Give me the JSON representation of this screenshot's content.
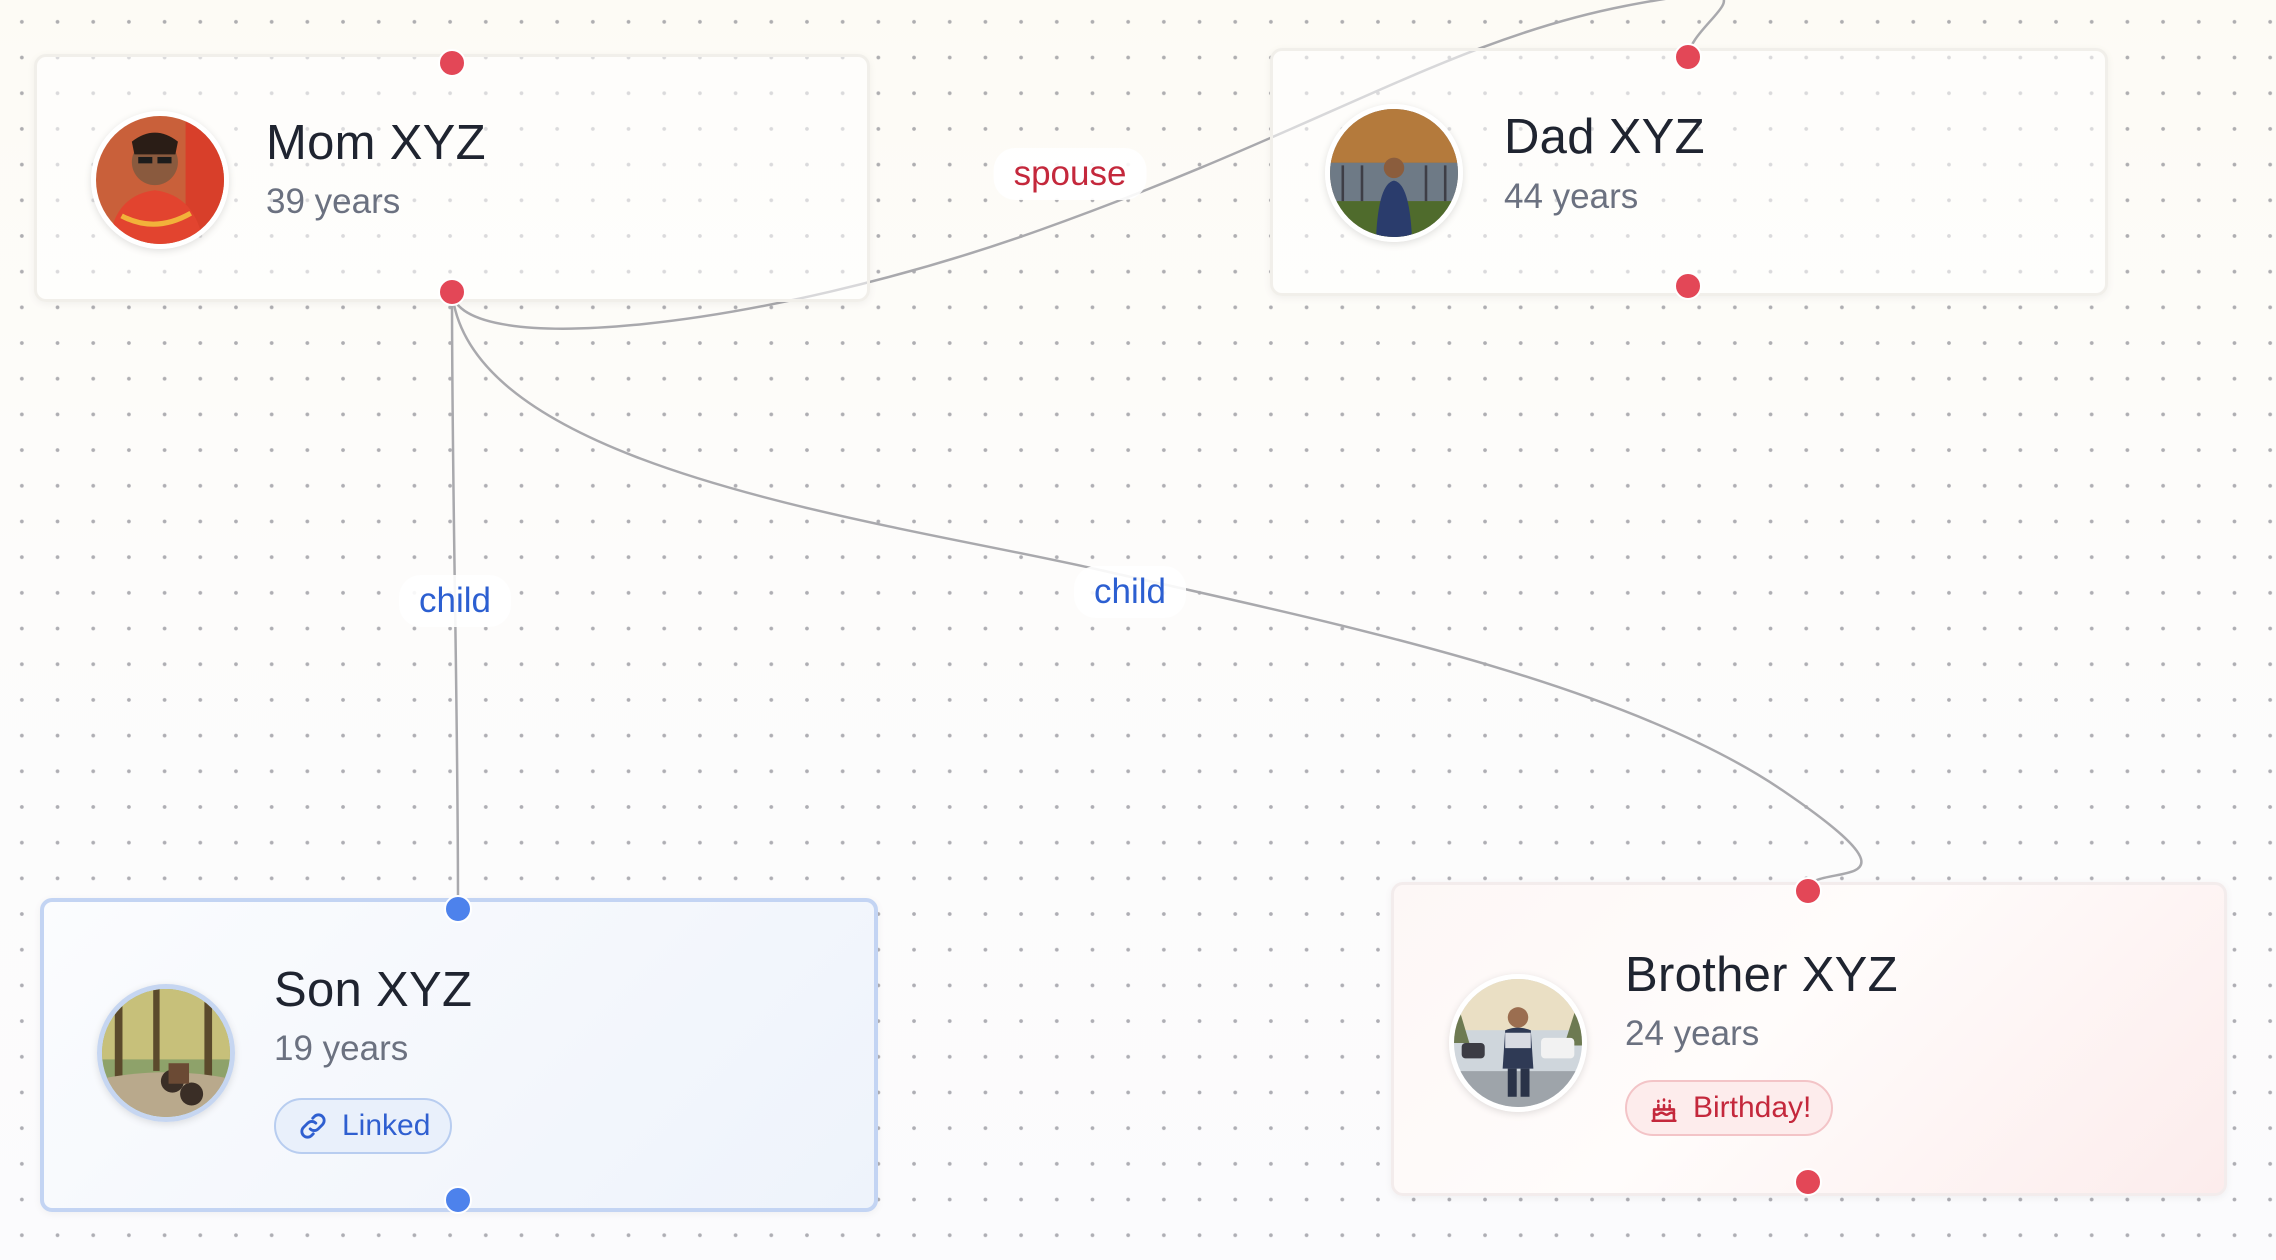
{
  "theme": {
    "edge_color": "#a9a9ad",
    "handle_red": "#e34757",
    "handle_blue": "#4d82ec",
    "spouse_label_color": "#c4283c",
    "child_label_color": "#2c5fd1"
  },
  "nodes": [
    {
      "id": "mom",
      "name": "Mom XYZ",
      "age": "39 years"
    },
    {
      "id": "dad",
      "name": "Dad XYZ",
      "age": "44 years"
    },
    {
      "id": "son",
      "name": "Son XYZ",
      "age": "19 years",
      "badge": {
        "label": "Linked",
        "icon": "link-icon"
      }
    },
    {
      "id": "brother",
      "name": "Brother XYZ",
      "age": "24 years",
      "badge": {
        "label": "Birthday!",
        "icon": "cake-icon"
      }
    }
  ],
  "edges": [
    {
      "from": "Mom XYZ",
      "to": "Dad XYZ",
      "label": "spouse"
    },
    {
      "from": "Mom XYZ",
      "to": "Son XYZ",
      "label": "child"
    },
    {
      "from": "Mom XYZ",
      "to": "Brother XYZ",
      "label": "child"
    }
  ]
}
